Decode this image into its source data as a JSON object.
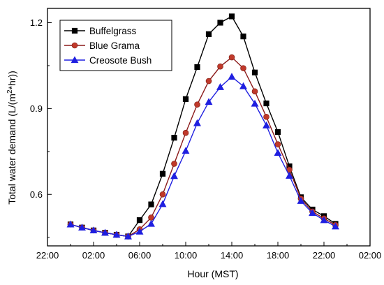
{
  "chart_data": {
    "type": "line",
    "xlabel": "Hour (MST)",
    "ylabel": "Total water demand (L/(m²*hr))",
    "ylabel_parts": {
      "before": "Total water demand (L/(m",
      "sup": "2",
      "after": "*hr))"
    },
    "xlim": [
      -2,
      26
    ],
    "ylim": [
      0.42,
      1.25
    ],
    "x_ticks": [
      {
        "value": -2,
        "label": "22:00"
      },
      {
        "value": 2,
        "label": "02:00"
      },
      {
        "value": 6,
        "label": "06:00"
      },
      {
        "value": 10,
        "label": "10:00"
      },
      {
        "value": 14,
        "label": "14:00"
      },
      {
        "value": 18,
        "label": "18:00"
      },
      {
        "value": 22,
        "label": "22:00"
      },
      {
        "value": 26,
        "label": "02:00"
      }
    ],
    "y_ticks": [
      {
        "value": 0.6,
        "label": "0.6"
      },
      {
        "value": 0.9,
        "label": "0.9"
      },
      {
        "value": 1.2,
        "label": "1.2"
      }
    ],
    "grid": false,
    "legend_position": "top-left",
    "x": [
      0,
      1,
      2,
      3,
      4,
      5,
      6,
      7,
      8,
      9,
      10,
      11,
      12,
      13,
      14,
      15,
      16,
      17,
      18,
      19,
      20,
      21,
      22,
      23
    ],
    "series": [
      {
        "name": "Buffelgrass",
        "color": "#000000",
        "marker": "square",
        "values": [
          0.495,
          0.484,
          0.474,
          0.466,
          0.459,
          0.453,
          0.51,
          0.565,
          0.672,
          0.798,
          0.933,
          1.045,
          1.16,
          1.2,
          1.222,
          1.152,
          1.026,
          0.918,
          0.818,
          0.698,
          0.59,
          0.547,
          0.524,
          0.497
        ]
      },
      {
        "name": "Blue Grama",
        "color": "#c0392b",
        "line_color": "#8b1a1a",
        "marker": "circle",
        "values": [
          0.495,
          0.484,
          0.474,
          0.466,
          0.459,
          0.453,
          0.478,
          0.519,
          0.6,
          0.707,
          0.815,
          0.914,
          0.996,
          1.047,
          1.079,
          1.041,
          0.96,
          0.871,
          0.775,
          0.686,
          0.585,
          0.54,
          0.516,
          0.493
        ]
      },
      {
        "name": "Creosote Bush",
        "color": "#1f1fe0",
        "marker": "triangle",
        "values": [
          0.495,
          0.484,
          0.474,
          0.466,
          0.459,
          0.453,
          0.47,
          0.497,
          0.566,
          0.664,
          0.752,
          0.849,
          0.923,
          0.975,
          1.011,
          0.978,
          0.917,
          0.841,
          0.745,
          0.665,
          0.577,
          0.535,
          0.51,
          0.488
        ]
      }
    ]
  }
}
